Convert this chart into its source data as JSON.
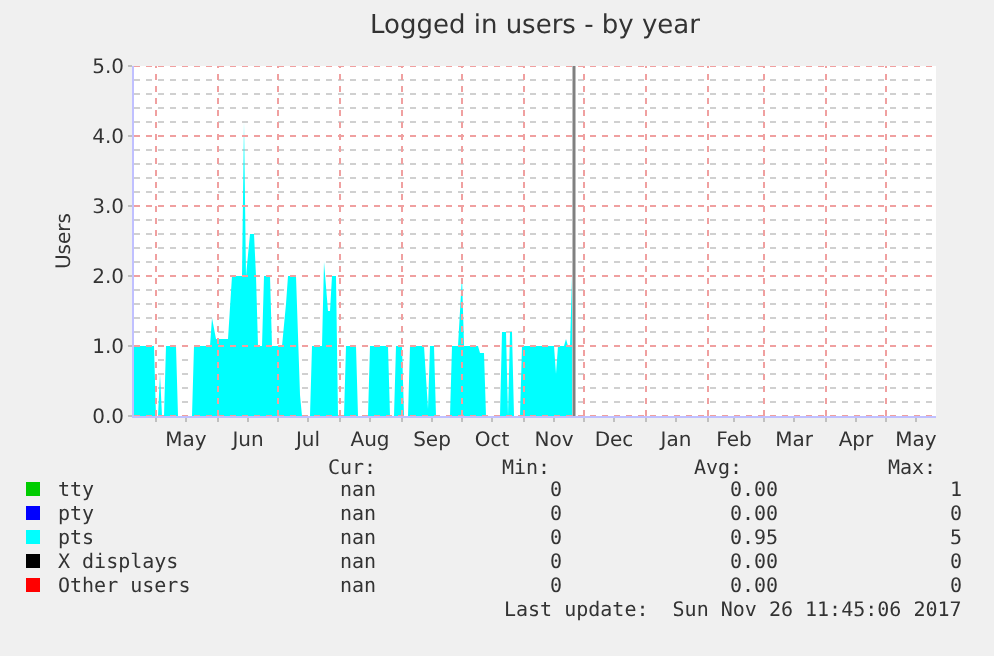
{
  "chart_data": {
    "type": "area",
    "title": "Logged in users - by year",
    "ylabel": "Users",
    "x": [
      "2017-04-20",
      "2017-04-30",
      "2017-05-01",
      "2017-05-02",
      "2017-05-03",
      "2017-05-04",
      "2017-05-05",
      "2017-05-06",
      "2017-05-11",
      "2017-05-12",
      "2017-05-19",
      "2017-05-20",
      "2017-05-28",
      "2017-05-29",
      "2017-05-31",
      "2017-06-06",
      "2017-06-08",
      "2017-06-13",
      "2017-06-14",
      "2017-06-15",
      "2017-06-17",
      "2017-06-19",
      "2017-06-20",
      "2017-06-21",
      "2017-06-23",
      "2017-06-24",
      "2017-06-27",
      "2017-06-28",
      "2017-07-03",
      "2017-07-05",
      "2017-07-06",
      "2017-07-10",
      "2017-07-12",
      "2017-07-13",
      "2017-07-17",
      "2017-07-18",
      "2017-07-23",
      "2017-07-24",
      "2017-07-26",
      "2017-07-27",
      "2017-07-28",
      "2017-07-30",
      "2017-07-31",
      "2017-08-03",
      "2017-08-04",
      "2017-08-09",
      "2017-08-10",
      "2017-08-15",
      "2017-08-16",
      "2017-08-25",
      "2017-08-26",
      "2017-08-28",
      "2017-08-29",
      "2017-09-01",
      "2017-09-02",
      "2017-09-04",
      "2017-09-05",
      "2017-09-12",
      "2017-09-14",
      "2017-09-15",
      "2017-09-17",
      "2017-09-18",
      "2017-09-25",
      "2017-09-26",
      "2017-09-29",
      "2017-10-01",
      "2017-10-02",
      "2017-10-09",
      "2017-10-10",
      "2017-10-12",
      "2017-10-13",
      "2017-10-20",
      "2017-10-21",
      "2017-10-23",
      "2017-10-24",
      "2017-10-25",
      "2017-10-26",
      "2017-10-27",
      "2017-10-30",
      "2017-10-31",
      "2017-11-16",
      "2017-11-17",
      "2017-11-18",
      "2017-11-21",
      "2017-11-22",
      "2017-11-23",
      "2017-11-24",
      "2017-11-25"
    ],
    "series": [
      {
        "name": "tty",
        "color": "#00cc00",
        "values": [
          null,
          null,
          null,
          null,
          null,
          null,
          null,
          null,
          null,
          null,
          null,
          null,
          null,
          null,
          null,
          null,
          null,
          null,
          null,
          null,
          null,
          null,
          null,
          null,
          null,
          null,
          null,
          null,
          null,
          null,
          null,
          null,
          null,
          null,
          null,
          null,
          null,
          null,
          null,
          null,
          null,
          null,
          null,
          null,
          null,
          null,
          null,
          null,
          null,
          null,
          null,
          null,
          null,
          null,
          null,
          null,
          null,
          null,
          null,
          null,
          null,
          null,
          null,
          null,
          null,
          null,
          null,
          null,
          null,
          null,
          null,
          null,
          null,
          null,
          null,
          null,
          null,
          null,
          null,
          null,
          null,
          null,
          null,
          null,
          null,
          null,
          null,
          null
        ]
      },
      {
        "name": "pty",
        "color": "#0000ff",
        "values": [
          null,
          null,
          null,
          null,
          null,
          null,
          null,
          null,
          null,
          null,
          null,
          null,
          null,
          null,
          null,
          null,
          null,
          null,
          null,
          null,
          null,
          null,
          null,
          null,
          null,
          null,
          null,
          null,
          null,
          null,
          null,
          null,
          null,
          null,
          null,
          null,
          null,
          null,
          null,
          null,
          null,
          null,
          null,
          null,
          null,
          null,
          null,
          null,
          null,
          null,
          null,
          null,
          null,
          null,
          null,
          null,
          null,
          null,
          null,
          null,
          null,
          null,
          null,
          null,
          null,
          null,
          null,
          null,
          null,
          null,
          null,
          null,
          null,
          null,
          null,
          null,
          null,
          null,
          null,
          null,
          null,
          null,
          null,
          null,
          null,
          null,
          null,
          null
        ]
      },
      {
        "name": "pts",
        "color": "#00ffff",
        "values": [
          1,
          1,
          0,
          0,
          0.6,
          0,
          0,
          1,
          1,
          0,
          0,
          1,
          1,
          1.4,
          1.1,
          1.1,
          2.0,
          2.0,
          4.2,
          2.0,
          2.6,
          2.6,
          2.0,
          1.0,
          1.0,
          2.0,
          2.0,
          1.0,
          1.0,
          1.6,
          2.0,
          2.0,
          0.3,
          0,
          0,
          1,
          1,
          2.2,
          1.5,
          1.5,
          2.0,
          2.0,
          0,
          0,
          1,
          1,
          0,
          0,
          1,
          1,
          0,
          0,
          1,
          1,
          0,
          0,
          1,
          1,
          0.1,
          1,
          1,
          0,
          0,
          1,
          1,
          2.0,
          1,
          1,
          0.9,
          0.9,
          0,
          0,
          1.2,
          1.2,
          0,
          1.2,
          1.2,
          0,
          0,
          1,
          1,
          0.6,
          1,
          1,
          1.1,
          1,
          1,
          2.0
        ]
      },
      {
        "name": "X displays",
        "color": "#000000",
        "values": [
          null,
          null,
          null,
          null,
          null,
          null,
          null,
          null,
          null,
          null,
          null,
          null,
          null,
          null,
          null,
          null,
          null,
          null,
          null,
          null,
          null,
          null,
          null,
          null,
          null,
          null,
          null,
          null,
          null,
          null,
          null,
          null,
          null,
          null,
          null,
          null,
          null,
          null,
          null,
          null,
          null,
          null,
          null,
          null,
          null,
          null,
          null,
          null,
          null,
          null,
          null,
          null,
          null,
          null,
          null,
          null,
          null,
          null,
          null,
          null,
          null,
          null,
          null,
          null,
          null,
          null,
          null,
          null,
          null,
          null,
          null,
          null,
          null,
          null,
          null,
          null,
          null,
          null,
          null,
          null,
          null,
          null,
          null,
          null,
          null,
          null,
          null,
          null
        ]
      },
      {
        "name": "Other users",
        "color": "#ff0000",
        "values": [
          null,
          null,
          null,
          null,
          null,
          null,
          null,
          null,
          null,
          null,
          null,
          null,
          null,
          null,
          null,
          null,
          null,
          null,
          null,
          null,
          null,
          null,
          null,
          null,
          null,
          null,
          null,
          null,
          null,
          null,
          null,
          null,
          null,
          null,
          null,
          null,
          null,
          null,
          null,
          null,
          null,
          null,
          null,
          null,
          null,
          null,
          null,
          null,
          null,
          null,
          null,
          null,
          null,
          null,
          null,
          null,
          null,
          null,
          null,
          null,
          null,
          null,
          null,
          null,
          null,
          null,
          null,
          null,
          null,
          null,
          null,
          null,
          null,
          null,
          null,
          null,
          null,
          null,
          null,
          null,
          null,
          null,
          null,
          null,
          null,
          null,
          null,
          null
        ]
      }
    ],
    "xlim": [
      "2017-04-20",
      "2018-05-26"
    ],
    "xticks": [
      {
        "value": "2017-05-01",
        "label": null
      },
      {
        "value": "2017-06-01",
        "label": null
      },
      {
        "value": "2017-07-01",
        "label": null
      },
      {
        "value": "2017-08-01",
        "label": null
      },
      {
        "value": "2017-09-01",
        "label": null
      },
      {
        "value": "2017-10-01",
        "label": null
      },
      {
        "value": "2017-11-01",
        "label": null
      },
      {
        "value": "2017-12-01",
        "label": null
      },
      {
        "value": "2018-01-01",
        "label": null
      },
      {
        "value": "2018-02-01",
        "label": null
      },
      {
        "value": "2018-03-01",
        "label": null
      },
      {
        "value": "2018-04-01",
        "label": null
      },
      {
        "value": "2018-05-01",
        "label": null
      },
      {
        "value": "2017-05-16",
        "label": "May"
      },
      {
        "value": "2017-06-16",
        "label": "Jun"
      },
      {
        "value": "2017-07-16",
        "label": "Jul"
      },
      {
        "value": "2017-08-16",
        "label": "Aug"
      },
      {
        "value": "2017-09-16",
        "label": "Sep"
      },
      {
        "value": "2017-10-16",
        "label": "Oct"
      },
      {
        "value": "2017-11-16",
        "label": "Nov"
      },
      {
        "value": "2017-12-16",
        "label": "Dec"
      },
      {
        "value": "2018-01-16",
        "label": "Jan"
      },
      {
        "value": "2018-02-14",
        "label": "Feb"
      },
      {
        "value": "2018-03-16",
        "label": "Mar"
      },
      {
        "value": "2018-04-16",
        "label": "Apr"
      },
      {
        "value": "2018-05-16",
        "label": "May"
      }
    ],
    "ylim": [
      0,
      5
    ],
    "yticks": [
      {
        "value": 0,
        "label": "0.0"
      },
      {
        "value": 0.2,
        "label": null
      },
      {
        "value": 0.4,
        "label": null
      },
      {
        "value": 0.6,
        "label": null
      },
      {
        "value": 0.8,
        "label": null
      },
      {
        "value": 1,
        "label": "1.0"
      },
      {
        "value": 1.2,
        "label": null
      },
      {
        "value": 1.4,
        "label": null
      },
      {
        "value": 1.6,
        "label": null
      },
      {
        "value": 1.8,
        "label": null
      },
      {
        "value": 2,
        "label": "2.0"
      },
      {
        "value": 2.2,
        "label": null
      },
      {
        "value": 2.4,
        "label": null
      },
      {
        "value": 2.6,
        "label": null
      },
      {
        "value": 2.8,
        "label": null
      },
      {
        "value": 3,
        "label": "3.0"
      },
      {
        "value": 3.2,
        "label": null
      },
      {
        "value": 3.4,
        "label": null
      },
      {
        "value": 3.6,
        "label": null
      },
      {
        "value": 3.8,
        "label": null
      },
      {
        "value": 4,
        "label": "4.0"
      },
      {
        "value": 4.2,
        "label": null
      },
      {
        "value": 4.4,
        "label": null
      },
      {
        "value": 4.6,
        "label": null
      },
      {
        "value": 4.8,
        "label": null
      },
      {
        "value": 5,
        "label": "5.0"
      }
    ],
    "grid": true,
    "ref_lines": [
      {
        "axis": "x",
        "value": "2017-11-26",
        "color": "#808080"
      }
    ],
    "legend": "bottom",
    "annotations": [
      "Cur:",
      "Min:",
      "Avg:",
      "Max:",
      "nan",
      "0",
      "0.00",
      "1",
      "nan",
      "0",
      "0.00",
      "0",
      "nan",
      "0",
      "0.95",
      "5",
      "nan",
      "0",
      "0.00",
      "0",
      "nan",
      "0",
      "0.00",
      "0",
      "Last update:  Sun Nov 26 11:45:06 2017"
    ]
  }
}
